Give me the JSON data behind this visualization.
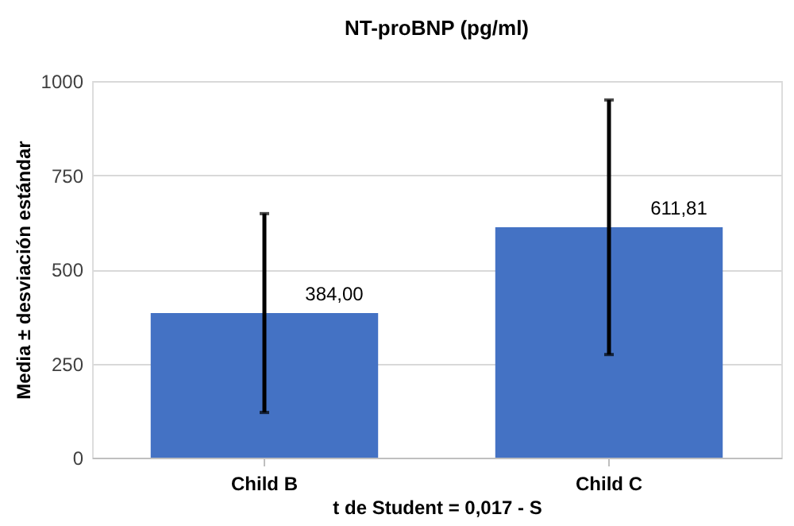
{
  "chart_data": {
    "type": "bar",
    "title": "NT-proBNP (pg/ml)",
    "xlabel": "t de Student = 0,017 - S",
    "ylabel": "Media ± desviación estándar",
    "categories": [
      "Child B",
      "Child C"
    ],
    "values": [
      384.0,
      611.81
    ],
    "color": "#4472c4",
    "value_labels": [
      "384,00",
      "611,81"
    ],
    "errors": [
      264,
      338
    ],
    "ylim": [
      0,
      1000
    ],
    "yticks": [
      0,
      250,
      500,
      750,
      1000
    ],
    "grid": "y"
  }
}
